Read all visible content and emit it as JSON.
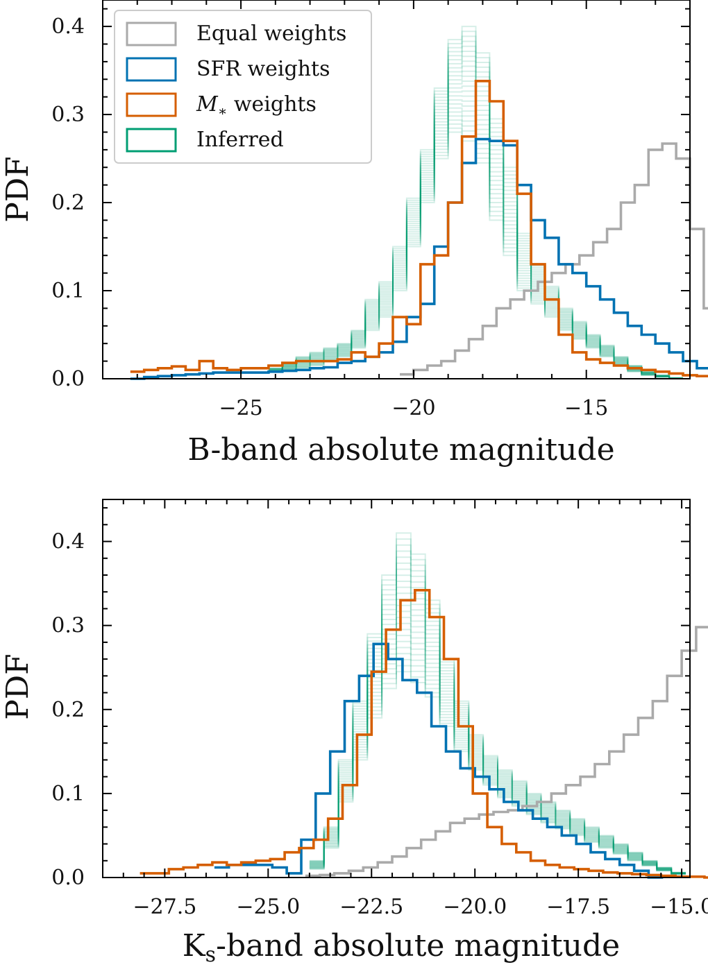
{
  "chart_data": [
    {
      "type": "step-histogram",
      "xlabel": "B-band absolute magnitude",
      "ylabel": "PDF",
      "xlim": [
        -29.0,
        -12.0
      ],
      "ylim": [
        0.0,
        0.43
      ],
      "xticks": [
        -25,
        -20,
        -15
      ],
      "xtick_labels": [
        "−25",
        "−20",
        "−15"
      ],
      "yticks": [
        0.0,
        0.1,
        0.2,
        0.3,
        0.4
      ],
      "ytick_labels": [
        "0.0",
        "0.1",
        "0.2",
        "0.3",
        "0.4"
      ],
      "legend": {
        "position": "top-left",
        "entries": [
          {
            "key": "equal",
            "label": "Equal weights"
          },
          {
            "key": "sfr",
            "label": "SFR weights"
          },
          {
            "key": "mstar",
            "label": "M* weights",
            "label_main": "M",
            "label_sub": "∗",
            "label_rest": " weights"
          },
          {
            "key": "inferred",
            "label": "Inferred"
          }
        ]
      },
      "series": [
        {
          "key": "equal",
          "name": "Equal weights",
          "color": "#aaaaaa",
          "edges_start": -20.4,
          "bin_width": 0.4,
          "values": [
            0.005,
            0.01,
            0.015,
            0.02,
            0.032,
            0.045,
            0.06,
            0.08,
            0.09,
            0.1,
            0.11,
            0.12,
            0.13,
            0.14,
            0.155,
            0.17,
            0.2,
            0.22,
            0.26,
            0.267,
            0.25,
            0.17,
            0.08,
            0.03,
            0.015,
            0.008,
            0.003,
            0.0
          ]
        },
        {
          "key": "sfr",
          "name": "SFR weights",
          "color": "#0072b2",
          "edges_start": -28.2,
          "bin_width": 0.4,
          "values": [
            0.0,
            0.002,
            0.003,
            0.004,
            0.005,
            0.006,
            0.007,
            0.007,
            0.007,
            0.007,
            0.008,
            0.009,
            0.01,
            0.012,
            0.013,
            0.018,
            0.02,
            0.025,
            0.03,
            0.042,
            0.07,
            0.085,
            0.15,
            0.2,
            0.245,
            0.272,
            0.27,
            0.265,
            0.22,
            0.18,
            0.16,
            0.13,
            0.12,
            0.105,
            0.09,
            0.075,
            0.06,
            0.05,
            0.04,
            0.03,
            0.02,
            0.012,
            0.006,
            0.002,
            0.0
          ]
        },
        {
          "key": "mstar",
          "name": "M* weights",
          "color": "#d55e00",
          "edges_start": -28.2,
          "bin_width": 0.4,
          "values": [
            0.008,
            0.01,
            0.012,
            0.014,
            0.01,
            0.02,
            0.012,
            0.01,
            0.012,
            0.012,
            0.015,
            0.018,
            0.02,
            0.02,
            0.02,
            0.022,
            0.03,
            0.025,
            0.04,
            0.07,
            0.062,
            0.13,
            0.14,
            0.2,
            0.275,
            0.338,
            0.315,
            0.27,
            0.21,
            0.13,
            0.09,
            0.05,
            0.03,
            0.022,
            0.018,
            0.015,
            0.012,
            0.01,
            0.008,
            0.006,
            0.004,
            0.003,
            0.002,
            0.001,
            0.0
          ]
        }
      ],
      "inferred": {
        "key": "inferred",
        "name": "Inferred",
        "color": "#009e73",
        "edges_start": -24.2,
        "bin_width": 0.4,
        "low": [
          0.008,
          0.01,
          0.012,
          0.015,
          0.02,
          0.025,
          0.035,
          0.055,
          0.07,
          0.1,
          0.15,
          0.2,
          0.25,
          0.28,
          0.27,
          0.245,
          0.18,
          0.14,
          0.1,
          0.085,
          0.07,
          0.055,
          0.045,
          0.035,
          0.025,
          0.015,
          0.008,
          0.004,
          0.002,
          0.0
        ],
        "high": [
          0.012,
          0.018,
          0.025,
          0.03,
          0.035,
          0.04,
          0.055,
          0.09,
          0.11,
          0.15,
          0.205,
          0.26,
          0.33,
          0.385,
          0.4,
          0.37,
          0.295,
          0.24,
          0.165,
          0.13,
          0.105,
          0.08,
          0.065,
          0.05,
          0.038,
          0.025,
          0.015,
          0.008,
          0.004,
          0.001
        ]
      }
    },
    {
      "type": "step-histogram",
      "xlabel": "K_s-band absolute magnitude",
      "xlabel_main": "K",
      "xlabel_sub": "s",
      "xlabel_rest": "-band absolute magnitude",
      "ylabel": "PDF",
      "xlim": [
        -29.0,
        -14.8
      ],
      "ylim": [
        0.0,
        0.45
      ],
      "xticks": [
        -27.5,
        -25.0,
        -22.5,
        -20.0,
        -17.5,
        -15.0
      ],
      "xtick_labels": [
        "−27.5",
        "−25.0",
        "−22.5",
        "−20.0",
        "−17.5",
        "−15.0"
      ],
      "yticks": [
        0.0,
        0.1,
        0.2,
        0.3,
        0.4
      ],
      "ytick_labels": [
        "0.0",
        "0.1",
        "0.2",
        "0.3",
        "0.4"
      ],
      "series": [
        {
          "key": "equal",
          "name": "Equal weights",
          "color": "#aaaaaa",
          "edges_start": -24.1,
          "bin_width": 0.35,
          "values": [
            0.002,
            0.003,
            0.005,
            0.008,
            0.012,
            0.018,
            0.025,
            0.035,
            0.045,
            0.055,
            0.065,
            0.07,
            0.075,
            0.078,
            0.08,
            0.085,
            0.09,
            0.1,
            0.11,
            0.12,
            0.135,
            0.15,
            0.17,
            0.19,
            0.21,
            0.24,
            0.27,
            0.298,
            0.302,
            0.18,
            0.04,
            0.0
          ]
        },
        {
          "key": "sfr",
          "name": "SFR weights",
          "color": "#0072b2",
          "edges_start": -26.3,
          "bin_width": 0.35,
          "values": [
            0.012,
            0.015,
            0.015,
            0.015,
            0.012,
            0.005,
            0.045,
            0.1,
            0.15,
            0.21,
            0.24,
            0.278,
            0.26,
            0.235,
            0.22,
            0.18,
            0.15,
            0.13,
            0.12,
            0.105,
            0.09,
            0.08,
            0.07,
            0.06,
            0.05,
            0.04,
            0.03,
            0.022,
            0.015,
            0.008,
            0.0
          ]
        },
        {
          "key": "mstar",
          "name": "M* weights",
          "color": "#d55e00",
          "edges_start": -28.1,
          "bin_width": 0.35,
          "values": [
            0.005,
            0.005,
            0.01,
            0.012,
            0.015,
            0.018,
            0.015,
            0.018,
            0.02,
            0.022,
            0.03,
            0.035,
            0.045,
            0.07,
            0.11,
            0.17,
            0.245,
            0.295,
            0.33,
            0.342,
            0.31,
            0.26,
            0.18,
            0.1,
            0.06,
            0.04,
            0.03,
            0.02,
            0.015,
            0.012,
            0.01,
            0.008,
            0.006,
            0.005,
            0.004,
            0.003,
            0.002,
            0.001,
            0.001,
            0.0
          ]
        }
      ],
      "inferred": {
        "key": "inferred",
        "name": "Inferred",
        "color": "#009e73",
        "edges_start": -24.0,
        "bin_width": 0.35,
        "low": [
          0.01,
          0.035,
          0.09,
          0.14,
          0.19,
          0.225,
          0.245,
          0.232,
          0.215,
          0.18,
          0.15,
          0.128,
          0.11,
          0.095,
          0.085,
          0.075,
          0.065,
          0.058,
          0.05,
          0.042,
          0.035,
          0.028,
          0.02,
          0.014,
          0.008,
          0.004
        ],
        "high": [
          0.02,
          0.06,
          0.14,
          0.21,
          0.29,
          0.36,
          0.41,
          0.385,
          0.33,
          0.26,
          0.21,
          0.17,
          0.145,
          0.128,
          0.115,
          0.1,
          0.09,
          0.08,
          0.07,
          0.06,
          0.05,
          0.04,
          0.03,
          0.02,
          0.012,
          0.006
        ]
      }
    }
  ]
}
